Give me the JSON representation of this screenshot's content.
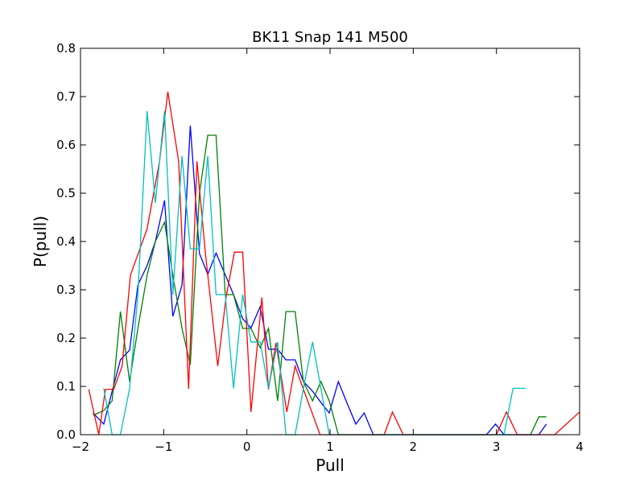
{
  "chart_data": {
    "type": "line",
    "title": "BK11 Snap 141 M500",
    "xlabel": "Pull",
    "ylabel": "P(pull)",
    "xlim": [
      -2,
      4
    ],
    "ylim": [
      0,
      0.8
    ],
    "xticks": [
      "−2",
      "−1",
      "0",
      "1",
      "2",
      "3",
      "4"
    ],
    "yticks": [
      "0.0",
      "0.1",
      "0.2",
      "0.3",
      "0.4",
      "0.5",
      "0.6",
      "0.7",
      "0.8"
    ],
    "grid": false,
    "series": [
      {
        "color": "#0000ff",
        "x": [
          -1.85,
          -1.72,
          -1.62,
          -1.52,
          -1.41,
          -1.31,
          -1.2,
          -1.1,
          -0.99,
          -0.89,
          -0.78,
          -0.68,
          -0.57,
          -0.47,
          -0.37,
          -0.26,
          -0.16,
          -0.05,
          0.05,
          0.16,
          0.26,
          0.37,
          0.47,
          0.58,
          0.68,
          0.79,
          0.89,
          0.99,
          1.1,
          1.2,
          1.31,
          1.41,
          1.52,
          1.62,
          1.73,
          1.83,
          1.94,
          2.04,
          2.15,
          2.25,
          2.36,
          2.46,
          2.57,
          2.67,
          2.78,
          2.88,
          2.99,
          3.09,
          3.2,
          3.3,
          3.41,
          3.51,
          3.6
        ],
        "y": [
          0.045,
          0.022,
          0.09,
          0.155,
          0.175,
          0.31,
          0.35,
          0.4,
          0.485,
          0.245,
          0.31,
          0.64,
          0.375,
          0.332,
          0.376,
          0.331,
          0.29,
          0.24,
          0.221,
          0.265,
          0.177,
          0.177,
          0.155,
          0.155,
          0.11,
          0.09,
          0.067,
          0.045,
          0.11,
          0.067,
          0.022,
          0.045,
          0.0,
          0.0,
          0.0,
          0.0,
          0.0,
          0.0,
          0.0,
          0.0,
          0.0,
          0.0,
          0.0,
          0.0,
          0.0,
          0.0,
          0.022,
          0.0,
          0.0,
          0.0,
          0.0,
          0.0,
          0.022
        ]
      },
      {
        "color": "#008000",
        "x": [
          -1.85,
          -1.72,
          -1.62,
          -1.52,
          -1.41,
          -1.31,
          -1.2,
          -1.1,
          -0.99,
          -0.89,
          -0.78,
          -0.68,
          -0.57,
          -0.47,
          -0.37,
          -0.26,
          -0.16,
          -0.05,
          0.05,
          0.16,
          0.26,
          0.37,
          0.47,
          0.58,
          0.68,
          0.79,
          0.89,
          0.99,
          1.1,
          1.2,
          1.31,
          1.41,
          1.52,
          1.62,
          1.73,
          1.83,
          1.94,
          2.04,
          2.15,
          2.25,
          2.36,
          2.46,
          2.57,
          2.67,
          2.78,
          2.88,
          2.99,
          3.09,
          3.2,
          3.3,
          3.41,
          3.51,
          3.6
        ],
        "y": [
          0.04,
          0.05,
          0.07,
          0.255,
          0.11,
          0.22,
          0.33,
          0.4,
          0.44,
          0.33,
          0.22,
          0.145,
          0.5,
          0.62,
          0.62,
          0.29,
          0.29,
          0.22,
          0.22,
          0.18,
          0.22,
          0.07,
          0.255,
          0.255,
          0.11,
          0.07,
          0.11,
          0.07,
          0.0,
          0.0,
          0.0,
          0.0,
          0.0,
          0.0,
          0.0,
          0.0,
          0.0,
          0.0,
          0.0,
          0.0,
          0.0,
          0.0,
          0.0,
          0.0,
          0.0,
          0.0,
          0.0,
          0.0,
          0.0,
          0.0,
          0.0,
          0.037,
          0.037
        ]
      },
      {
        "color": "#ff0000",
        "x": [
          -1.9,
          -1.78,
          -1.7,
          -1.6,
          -1.5,
          -1.4,
          -1.3,
          -1.2,
          -1.05,
          -0.95,
          -0.82,
          -0.7,
          -0.6,
          -0.5,
          -0.35,
          -0.25,
          -0.15,
          -0.05,
          0.05,
          0.18,
          0.26,
          0.35,
          0.48,
          0.58,
          0.68,
          0.78,
          0.88,
          0.98,
          1.08,
          1.18,
          1.3,
          1.42,
          1.55,
          1.65,
          1.75,
          1.88,
          1.98,
          2.08,
          2.2,
          2.32,
          2.42,
          2.55,
          2.65,
          2.75,
          2.88,
          3.0,
          3.12,
          3.25,
          3.35,
          3.45,
          3.55,
          3.7,
          4.0
        ],
        "y": [
          0.094,
          0.0,
          0.094,
          0.094,
          0.142,
          0.33,
          0.378,
          0.426,
          0.566,
          0.71,
          0.566,
          0.095,
          0.566,
          0.378,
          0.142,
          0.284,
          0.378,
          0.378,
          0.047,
          0.284,
          0.094,
          0.19,
          0.047,
          0.142,
          0.094,
          0.047,
          0.0,
          0.0,
          0.0,
          0.0,
          0.0,
          0.0,
          0.0,
          0.0,
          0.047,
          0.0,
          0.0,
          0.0,
          0.0,
          0.0,
          0.0,
          0.0,
          0.0,
          0.0,
          0.0,
          0.0,
          0.047,
          0.0,
          0.0,
          0.0,
          0.0,
          0.0,
          0.047
        ]
      },
      {
        "color": "#00bfbf",
        "x": [
          -1.72,
          -1.62,
          -1.52,
          -1.41,
          -1.31,
          -1.2,
          -1.1,
          -0.99,
          -0.89,
          -0.78,
          -0.68,
          -0.57,
          -0.47,
          -0.37,
          -0.26,
          -0.16,
          -0.05,
          0.05,
          0.16,
          0.26,
          0.37,
          0.47,
          0.58,
          0.68,
          0.79,
          0.89,
          0.99,
          1.1,
          1.2,
          1.31,
          1.41,
          1.52,
          1.62,
          1.73,
          1.83,
          1.94,
          2.04,
          2.15,
          2.25,
          2.36,
          2.46,
          2.57,
          2.67,
          2.78,
          2.88,
          2.99,
          3.09,
          3.2,
          3.3,
          3.35
        ],
        "y": [
          0.096,
          0.0,
          0.0,
          0.096,
          0.29,
          0.67,
          0.48,
          0.67,
          0.29,
          0.577,
          0.385,
          0.385,
          0.577,
          0.29,
          0.29,
          0.096,
          0.29,
          0.192,
          0.192,
          0.096,
          0.192,
          0.0,
          0.0,
          0.096,
          0.192,
          0.096,
          0.0,
          0.0,
          0.0,
          0.0,
          0.0,
          0.0,
          0.0,
          0.0,
          0.0,
          0.0,
          0.0,
          0.0,
          0.0,
          0.0,
          0.0,
          0.0,
          0.0,
          0.0,
          0.0,
          0.0,
          0.0,
          0.096,
          0.096,
          0.096
        ]
      }
    ]
  }
}
